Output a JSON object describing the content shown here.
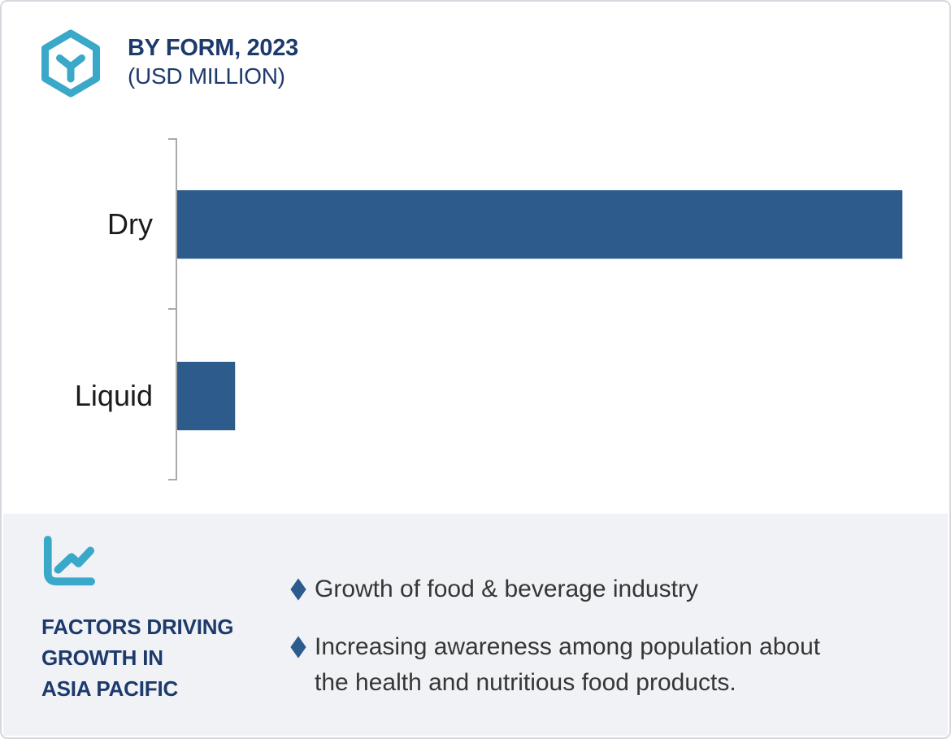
{
  "header": {
    "title": "BY FORM, 2023",
    "subtitle": "(USD MILLION)"
  },
  "chart_data": {
    "type": "bar",
    "orientation": "horizontal",
    "title": "BY FORM, 2023",
    "subtitle": "(USD MILLION)",
    "categories": [
      "Dry",
      "Liquid"
    ],
    "values": [
      100,
      8
    ],
    "value_scale": "relative bar lengths; value axis has no tick labels in the image",
    "value_labels_shown": false,
    "xlim": [
      0,
      106
    ],
    "ylabel": "",
    "xlabel": "",
    "legend": "none",
    "grid": "off",
    "bar_color": "#2d5c8c",
    "axis_color": "#a9a9a9"
  },
  "factors": {
    "heading": "FACTORS DRIVING\nGROWTH IN\nASIA PACIFIC",
    "items": [
      {
        "text": "Growth of food & beverage industry"
      },
      {
        "text": "Increasing awareness among population about\nthe health and nutritious food products."
      }
    ]
  },
  "colors": {
    "accent_teal": "#3aa9c9",
    "navy_text": "#1c3a6b",
    "bar_blue": "#2d5c8c",
    "panel_background": "#f1f2f6",
    "card_border": "#d6d8e0",
    "body_text": "#363636"
  },
  "icons": {
    "header_icon": "hexagon-cube-icon",
    "factors_icon": "line-chart-icon",
    "bullet_icon": "diamond-bullet-icon"
  }
}
